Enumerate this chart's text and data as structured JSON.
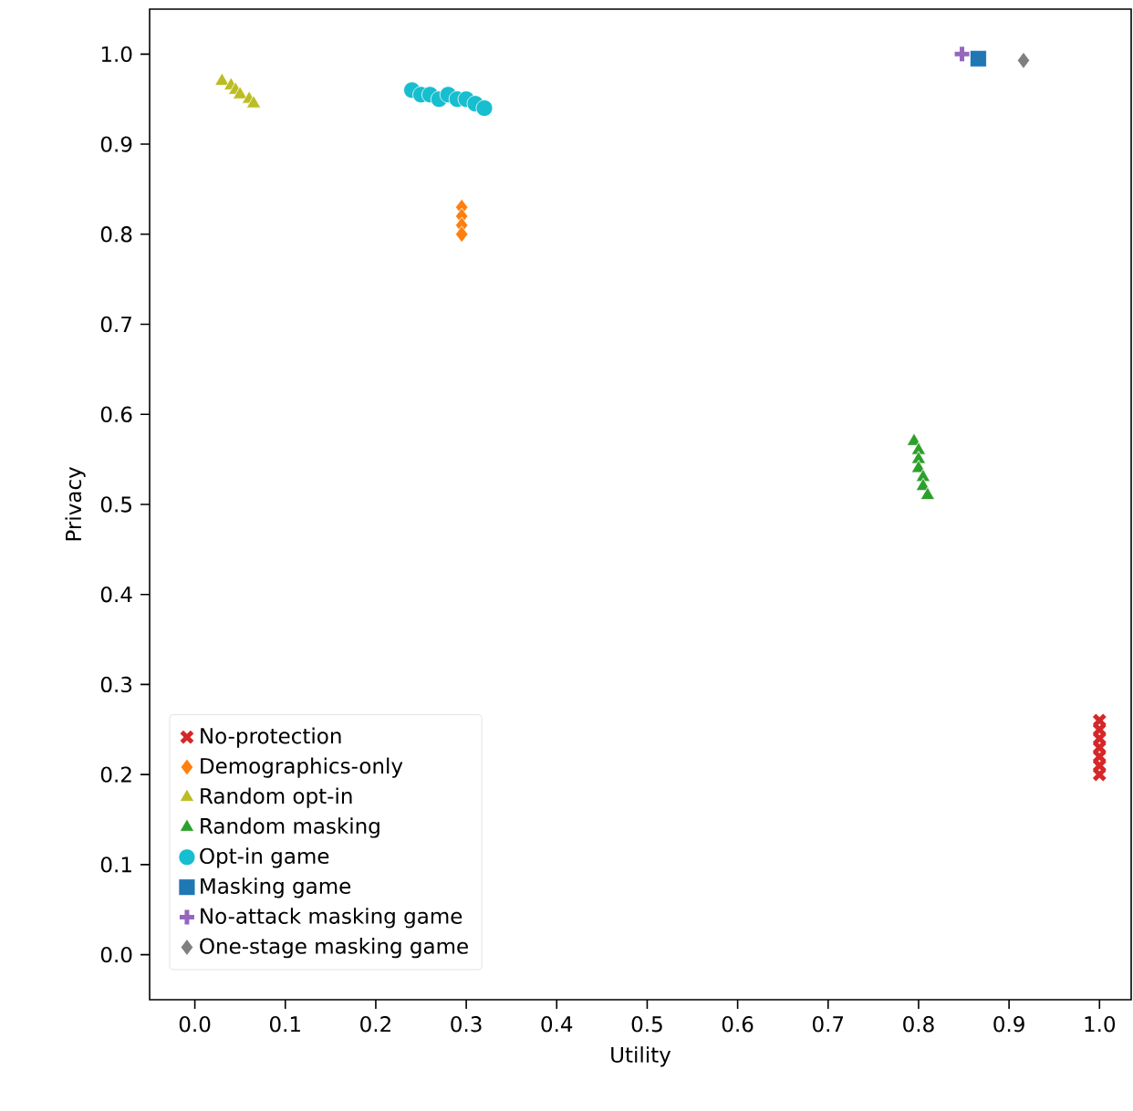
{
  "chart_data": {
    "type": "scatter",
    "xlabel": "Utility",
    "ylabel": "Privacy",
    "xlim": [
      -0.05,
      1.035
    ],
    "ylim": [
      -0.05,
      1.05
    ],
    "xticks": [
      {
        "value": 0,
        "label": "0.0"
      },
      {
        "value": 0.1,
        "label": "0.1"
      },
      {
        "value": 0.2,
        "label": "0.2"
      },
      {
        "value": 0.3,
        "label": "0.3"
      },
      {
        "value": 0.4,
        "label": "0.4"
      },
      {
        "value": 0.5,
        "label": "0.5"
      },
      {
        "value": 0.6,
        "label": "0.6"
      },
      {
        "value": 0.7,
        "label": "0.7"
      },
      {
        "value": 0.8,
        "label": "0.8"
      },
      {
        "value": 0.9,
        "label": "0.9"
      },
      {
        "value": 1,
        "label": "1.0"
      }
    ],
    "yticks": [
      {
        "value": 0,
        "label": "0.0"
      },
      {
        "value": 0.1,
        "label": "0.1"
      },
      {
        "value": 0.2,
        "label": "0.2"
      },
      {
        "value": 0.3,
        "label": "0.3"
      },
      {
        "value": 0.4,
        "label": "0.4"
      },
      {
        "value": 0.5,
        "label": "0.5"
      },
      {
        "value": 0.6,
        "label": "0.6"
      },
      {
        "value": 0.7,
        "label": "0.7"
      },
      {
        "value": 0.8,
        "label": "0.8"
      },
      {
        "value": 0.9,
        "label": "0.9"
      },
      {
        "value": 1,
        "label": "1.0"
      }
    ],
    "grid": false,
    "legend": "bottom left",
    "series": [
      {
        "name": "No-protection",
        "color": "#d62728",
        "marker": "cross",
        "x": [
          1.0,
          1.0,
          1.0,
          1.0,
          1.0,
          1.0,
          1.0
        ],
        "values": [
          0.26,
          0.25,
          0.24,
          0.23,
          0.22,
          0.21,
          0.2
        ]
      },
      {
        "name": "Demographics-only",
        "color": "#ff7f0e",
        "marker": "diamond",
        "x": [
          0.295,
          0.295,
          0.295,
          0.295
        ],
        "values": [
          0.83,
          0.82,
          0.81,
          0.8
        ]
      },
      {
        "name": "Random opt-in",
        "color": "#bcbd22",
        "marker": "triangle",
        "x": [
          0.03,
          0.04,
          0.045,
          0.05,
          0.06,
          0.065
        ],
        "values": [
          0.97,
          0.965,
          0.96,
          0.955,
          0.95,
          0.945
        ]
      },
      {
        "name": "Random masking",
        "color": "#2ca02c",
        "marker": "triangle_down",
        "x": [
          0.795,
          0.8,
          0.8,
          0.8,
          0.805,
          0.805,
          0.81
        ],
        "values": [
          0.57,
          0.56,
          0.55,
          0.54,
          0.53,
          0.52,
          0.51
        ]
      },
      {
        "name": "Opt-in game",
        "color": "#17becf",
        "marker": "circle",
        "x": [
          0.24,
          0.25,
          0.26,
          0.27,
          0.28,
          0.29,
          0.3,
          0.31,
          0.32
        ],
        "values": [
          0.96,
          0.955,
          0.955,
          0.95,
          0.955,
          0.95,
          0.95,
          0.945,
          0.94
        ]
      },
      {
        "name": "Masking game",
        "color": "#1f77b4",
        "marker": "square",
        "x": [
          0.866
        ],
        "values": [
          0.995
        ]
      },
      {
        "name": "No-attack masking game",
        "color": "#9467bd",
        "marker": "plus",
        "x": [
          0.848
        ],
        "values": [
          1.0
        ]
      },
      {
        "name": "One-stage masking game",
        "color": "#7f7f7f",
        "marker": "diamond",
        "x": [
          0.916
        ],
        "values": [
          0.993
        ]
      }
    ]
  }
}
